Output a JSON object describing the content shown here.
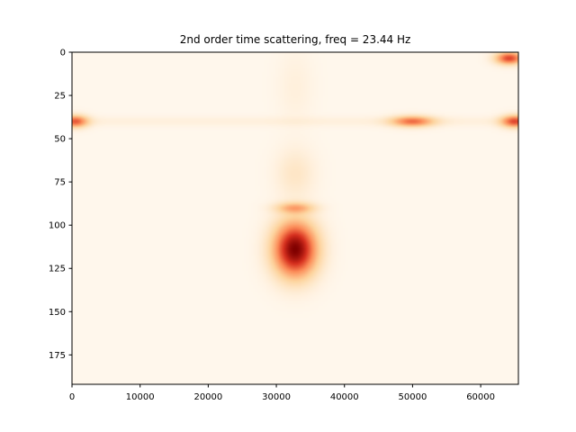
{
  "chart_data": {
    "type": "heatmap",
    "title": "2nd order time scattering, freq = 23.44 Hz",
    "xlabel": "",
    "ylabel": "",
    "colormap": "OrRd",
    "colors": {
      "low": "#fff7ec",
      "mid1": "#fdd49e",
      "mid2": "#fc8d59",
      "mid3": "#d7301f",
      "high": "#7f0000"
    },
    "xlim": [
      0,
      65536
    ],
    "ylim": [
      192,
      0
    ],
    "y_inverted": true,
    "grid": false,
    "x_ticks": [
      0,
      10000,
      20000,
      30000,
      40000,
      50000,
      60000
    ],
    "x_tick_labels": [
      "0",
      "10000",
      "20000",
      "30000",
      "40000",
      "50000",
      "60000"
    ],
    "y_ticks": [
      0,
      25,
      50,
      75,
      100,
      125,
      150,
      175
    ],
    "y_tick_labels": [
      "0",
      "25",
      "50",
      "75",
      "100",
      "125",
      "150",
      "175"
    ],
    "hotspots": [
      {
        "x": 32768,
        "y": 114,
        "intensity": 1.0,
        "sx": 2200,
        "sy": 11
      },
      {
        "x": 32768,
        "y": 90,
        "intensity": 0.35,
        "sx": 2000,
        "sy": 2.2
      },
      {
        "x": 32768,
        "y": 70,
        "intensity": 0.12,
        "sx": 2000,
        "sy": 10
      },
      {
        "x": 32768,
        "y": 20,
        "intensity": 0.05,
        "sx": 1800,
        "sy": 15
      },
      {
        "x": 500,
        "y": 40,
        "intensity": 0.6,
        "sx": 1300,
        "sy": 2.5
      },
      {
        "x": 50000,
        "y": 40,
        "intensity": 0.55,
        "sx": 2200,
        "sy": 2.2
      },
      {
        "x": 65000,
        "y": 40,
        "intensity": 0.65,
        "sx": 1400,
        "sy": 2.5
      },
      {
        "x": 64200,
        "y": 3.5,
        "intensity": 0.7,
        "sx": 1400,
        "sy": 2.5
      }
    ],
    "bands": [
      {
        "y": 40,
        "intensity": 0.05,
        "sy": 2
      }
    ]
  }
}
